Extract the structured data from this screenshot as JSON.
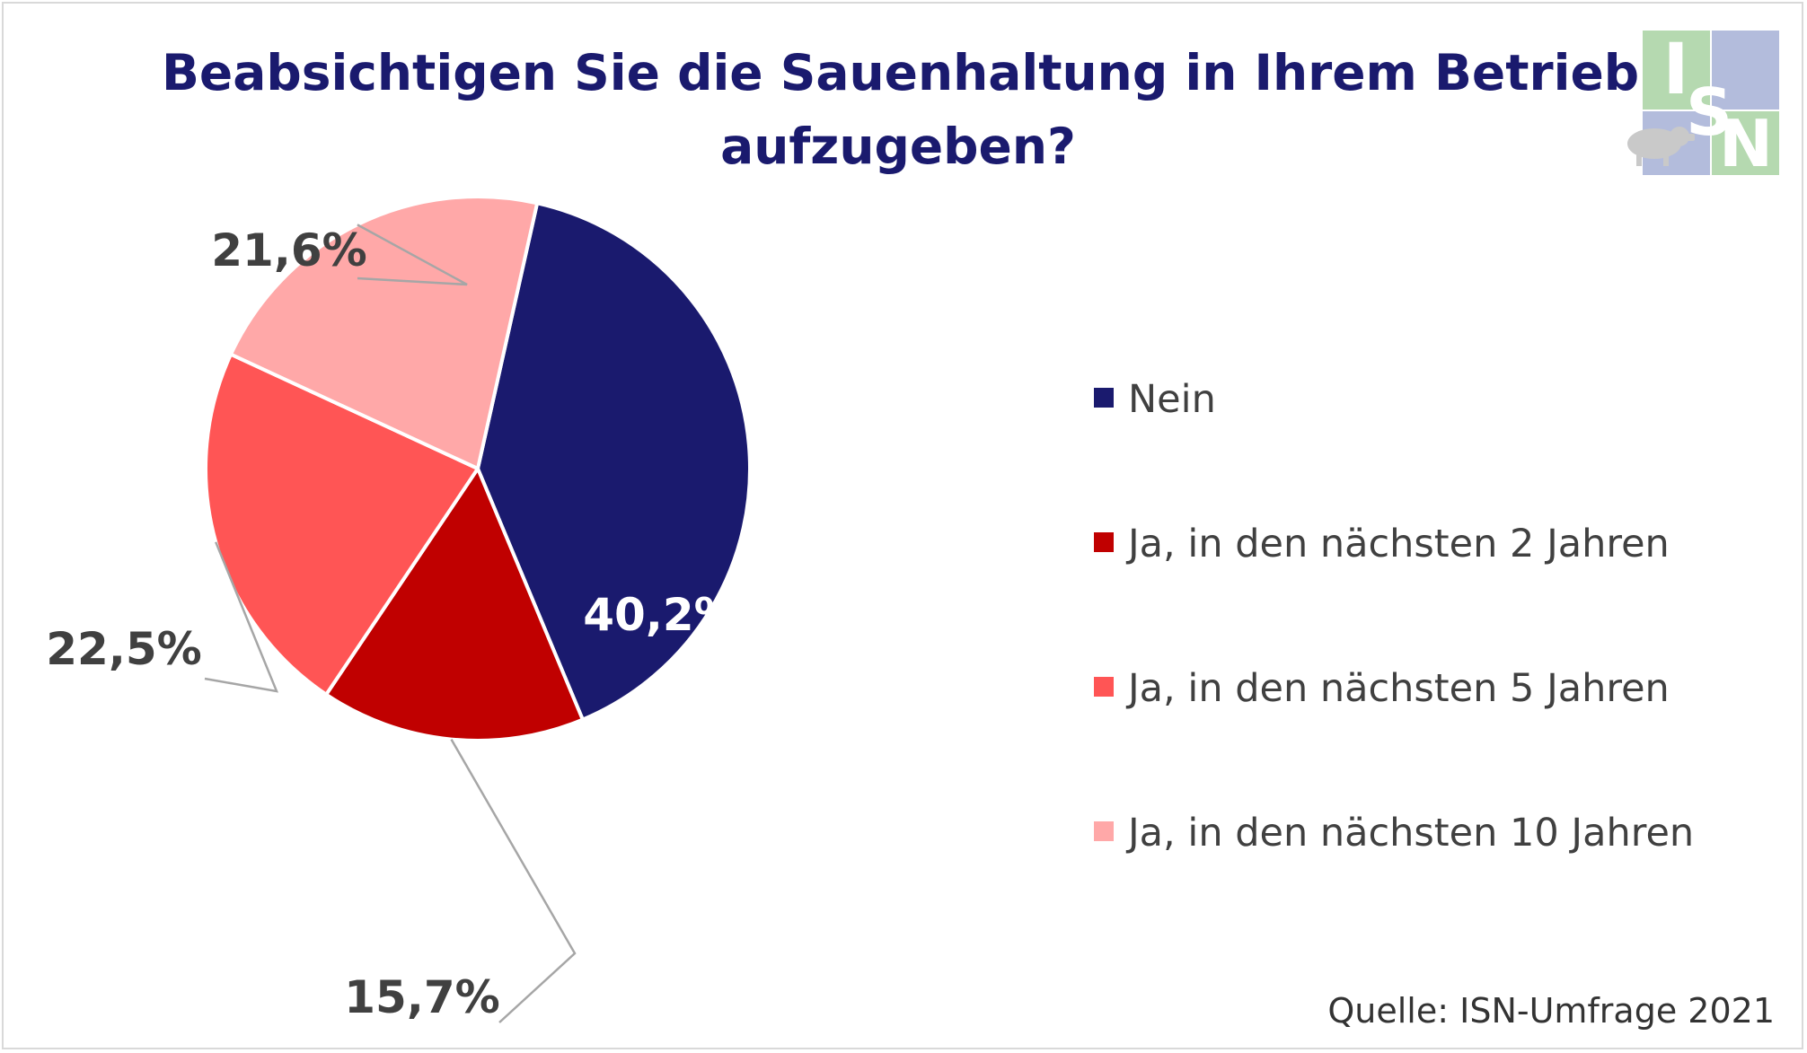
{
  "title_lines": [
    "Beabsichtigen Sie die Sauenhaltung in Ihrem Betrieb",
    "aufzugeben?"
  ],
  "source": "Quelle: ISN-Umfrage 2021",
  "logo": {
    "letters": [
      "I",
      "S",
      "N"
    ],
    "icon": "pig-icon"
  },
  "chart_data": {
    "type": "pie",
    "title": "Beabsichtigen Sie die Sauenhaltung in Ihrem Betrieb aufzugeben?",
    "legend_position": "right",
    "slices": [
      {
        "label": "Nein",
        "value": 40.2,
        "value_label": "40,2%",
        "color": "#1a1a6e"
      },
      {
        "label": "Ja, in den nächsten 2 Jahren",
        "value": 15.7,
        "value_label": "15,7%",
        "color": "#c00000"
      },
      {
        "label": "Ja, in den nächsten 5 Jahren",
        "value": 22.5,
        "value_label": "22,5%",
        "color": "#ff5555"
      },
      {
        "label": "Ja, in den nächsten 10 Jahren",
        "value": 21.6,
        "value_label": "21,6%",
        "color": "#ffa8a8"
      }
    ]
  }
}
